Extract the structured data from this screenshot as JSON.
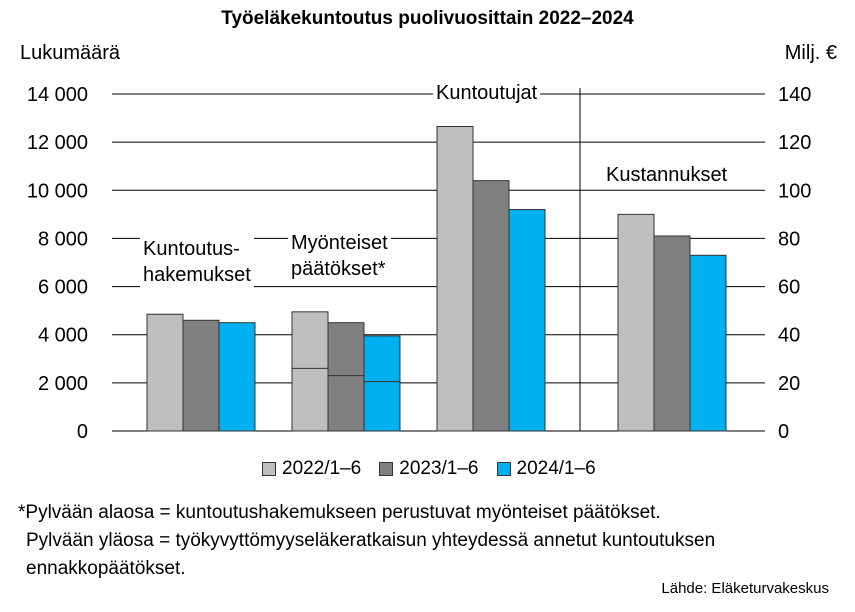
{
  "chart_data": {
    "type": "bar",
    "title": "Työeläkekuntoutus puolivuosittain 2022–2024",
    "ylabel_left": "Lukumäärä",
    "ylabel_right": "Milj. €",
    "ylim_left": [
      0,
      14000
    ],
    "ylim_right": [
      0,
      140
    ],
    "yticks_left": [
      "0",
      "2 000",
      "4 000",
      "6 000",
      "8 000",
      "10 000",
      "12 000",
      "14 000"
    ],
    "yticks_right": [
      "0",
      "20",
      "40",
      "60",
      "80",
      "100",
      "120",
      "140"
    ],
    "groups": [
      {
        "label": "Kuntoutus-\nhakemukset",
        "axis": "left",
        "values": [
          4850,
          4600,
          4500
        ]
      },
      {
        "label": "Myönteiset\npäätökset*",
        "axis": "left",
        "values": [
          4950,
          4500,
          3950
        ],
        "lower_part": [
          2600,
          2300,
          2050
        ]
      },
      {
        "label": "Kuntoutujat",
        "axis": "left",
        "values": [
          12650,
          10400,
          9200
        ]
      },
      {
        "label": "Kustannukset",
        "axis": "right",
        "values": [
          90,
          81,
          73
        ]
      }
    ],
    "series": [
      {
        "name": "2022/1–6",
        "color": "#bfbfbf"
      },
      {
        "name": "2023/1–6",
        "color": "#808080"
      },
      {
        "name": "2024/1–6",
        "color": "#00b0f0"
      }
    ],
    "grid": true,
    "legend_position": "bottom"
  },
  "footnote": {
    "line1": "*Pylvään alaosa = kuntoutushakemukseen perustuvat myönteiset päätökset.",
    "line2": "Pylvään yläosa = työkyvyttömyyseläkeratkaisun yhteydessä annetut kuntoutuksen",
    "line3": "ennakkopäätökset."
  },
  "source": "Lähde: Eläketurvakeskus"
}
